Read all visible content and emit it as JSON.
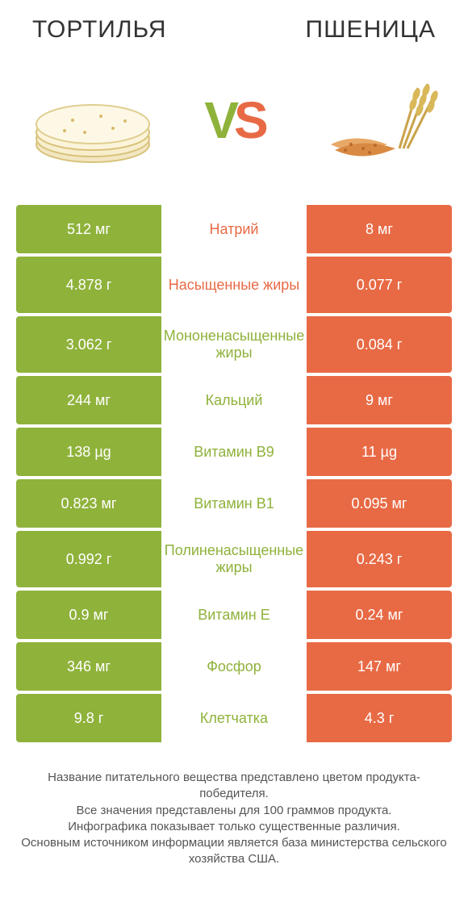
{
  "colors": {
    "left": "#8fb23b",
    "right": "#e86a45",
    "background": "#ffffff",
    "text": "#333333",
    "footer_text": "#555555"
  },
  "typography": {
    "title_fontsize": 30,
    "vs_fontsize": 64,
    "cell_fontsize": 18,
    "footer_fontsize": 15
  },
  "header": {
    "left_title": "ТОРТИЛЬЯ",
    "right_title": "ПШЕНИЦА"
  },
  "vs": {
    "v": "V",
    "s": "S"
  },
  "rows": [
    {
      "left": "512 мг",
      "label": "Натрий",
      "winner": "orange",
      "right": "8 мг",
      "tall": false
    },
    {
      "left": "4.878 г",
      "label": "Насыщенные жиры",
      "winner": "orange",
      "right": "0.077 г",
      "tall": true
    },
    {
      "left": "3.062 г",
      "label": "Мононенасыщенные жиры",
      "winner": "green",
      "right": "0.084 г",
      "tall": true
    },
    {
      "left": "244 мг",
      "label": "Кальций",
      "winner": "green",
      "right": "9 мг",
      "tall": false
    },
    {
      "left": "138 µg",
      "label": "Витамин B9",
      "winner": "green",
      "right": "11 µg",
      "tall": false
    },
    {
      "left": "0.823 мг",
      "label": "Витамин B1",
      "winner": "green",
      "right": "0.095 мг",
      "tall": false
    },
    {
      "left": "0.992 г",
      "label": "Полиненасыщенные жиры",
      "winner": "green",
      "right": "0.243 г",
      "tall": true
    },
    {
      "left": "0.9 мг",
      "label": "Витамин E",
      "winner": "green",
      "right": "0.24 мг",
      "tall": false
    },
    {
      "left": "346 мг",
      "label": "Фосфор",
      "winner": "green",
      "right": "147 мг",
      "tall": false
    },
    {
      "left": "9.8 г",
      "label": "Клетчатка",
      "winner": "green",
      "right": "4.3 г",
      "tall": false
    }
  ],
  "footer": {
    "line1": "Название питательного вещества представлено цветом продукта-победителя.",
    "line2": "Все значения представлены для 100 граммов продукта.",
    "line3": "Инфографика показывает только существенные различия.",
    "line4": "Основным источником информации является база министерства сельского хозяйства США."
  }
}
